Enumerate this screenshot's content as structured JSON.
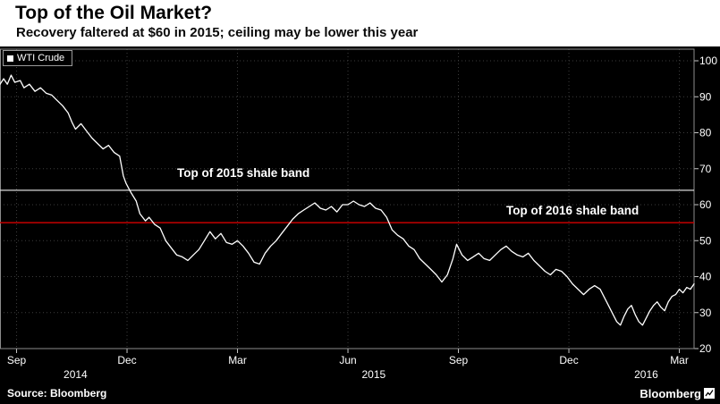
{
  "header": {
    "title": "Top of the Oil Market?",
    "subtitle": "Recovery faltered at $60 in 2015; ceiling may be lower this year"
  },
  "footer": {
    "source": "Source: Bloomberg",
    "brand": "Bloomberg"
  },
  "colors": {
    "background": "#000000",
    "line": "#ffffff",
    "band_2015": "#d9d9d9",
    "band_2016": "#c40000"
  },
  "chart_data": {
    "type": "line",
    "series_name": "WTI Crude",
    "x_unit": "months since Sep 2014",
    "xlim": [
      -0.45,
      18.4
    ],
    "ylim": [
      20,
      100
    ],
    "grid": true,
    "y_ticks": [
      100,
      90,
      80,
      70,
      60,
      50,
      40,
      30,
      20
    ],
    "x_ticks": [
      {
        "m": 0,
        "label": "Sep"
      },
      {
        "m": 3,
        "label": "Dec"
      },
      {
        "m": 6,
        "label": "Mar"
      },
      {
        "m": 9,
        "label": "Jun"
      },
      {
        "m": 12,
        "label": "Sep"
      },
      {
        "m": 15,
        "label": "Dec"
      },
      {
        "m": 18,
        "label": "Mar"
      }
    ],
    "year_labels": [
      {
        "m": 1.6,
        "label": "2014"
      },
      {
        "m": 9.7,
        "label": "2015"
      },
      {
        "m": 17.1,
        "label": "2016"
      }
    ],
    "ref_lines": [
      {
        "name": "top-2015-shale-band",
        "label": "Top of 2015 shale band",
        "value": 64,
        "color": "#d9d9d9",
        "width": 1.2
      },
      {
        "name": "top-2016-shale-band",
        "label": "Top of 2016 shale band",
        "value": 55,
        "color": "#c40000",
        "width": 1.6
      }
    ],
    "x": [
      -0.45,
      -0.35,
      -0.25,
      -0.15,
      -0.05,
      0.1,
      0.2,
      0.35,
      0.5,
      0.65,
      0.8,
      0.95,
      1.1,
      1.25,
      1.4,
      1.5,
      1.6,
      1.75,
      1.9,
      2.05,
      2.2,
      2.35,
      2.5,
      2.65,
      2.8,
      2.9,
      2.97,
      3.1,
      3.25,
      3.35,
      3.5,
      3.6,
      3.75,
      3.9,
      4.05,
      4.2,
      4.35,
      4.5,
      4.65,
      4.8,
      4.95,
      5.1,
      5.25,
      5.4,
      5.55,
      5.7,
      5.85,
      6.0,
      6.15,
      6.3,
      6.45,
      6.6,
      6.75,
      6.9,
      7.05,
      7.2,
      7.35,
      7.5,
      7.65,
      7.8,
      7.95,
      8.1,
      8.25,
      8.4,
      8.55,
      8.7,
      8.85,
      9.0,
      9.15,
      9.3,
      9.45,
      9.6,
      9.75,
      9.9,
      10.05,
      10.2,
      10.35,
      10.5,
      10.65,
      10.8,
      10.95,
      11.1,
      11.25,
      11.4,
      11.55,
      11.7,
      11.85,
      11.95,
      12.1,
      12.25,
      12.4,
      12.55,
      12.7,
      12.85,
      13.0,
      13.15,
      13.3,
      13.45,
      13.6,
      13.75,
      13.9,
      14.05,
      14.2,
      14.35,
      14.5,
      14.65,
      14.8,
      14.95,
      15.1,
      15.25,
      15.4,
      15.55,
      15.7,
      15.85,
      16.0,
      16.1,
      16.2,
      16.3,
      16.4,
      16.5,
      16.6,
      16.7,
      16.8,
      16.9,
      17.0,
      17.1,
      17.2,
      17.3,
      17.4,
      17.5,
      17.6,
      17.7,
      17.8,
      17.9,
      18.0,
      18.1,
      18.2,
      18.3,
      18.4
    ],
    "values": [
      93.5,
      95,
      93.5,
      96,
      94,
      94.5,
      92.5,
      93.5,
      91.5,
      92.5,
      91,
      90.5,
      89,
      87.5,
      85.5,
      83,
      81,
      82.5,
      80.5,
      78.5,
      77,
      75.5,
      76.5,
      74.5,
      73.5,
      68,
      66,
      63.5,
      61,
      57.5,
      55.5,
      56.5,
      54.5,
      53.5,
      50,
      48,
      46,
      45.5,
      44.5,
      46,
      47.5,
      50,
      52.5,
      50.5,
      52,
      49.5,
      49,
      50,
      48.5,
      46.5,
      44,
      43.5,
      46.5,
      48.5,
      50,
      52,
      54,
      56,
      57.5,
      58.5,
      59.5,
      60.5,
      59,
      58.5,
      59.5,
      58,
      60,
      60,
      61,
      60,
      59.5,
      60.5,
      59,
      58.5,
      56.5,
      53,
      51.5,
      50.5,
      48.5,
      47.5,
      45,
      43.5,
      42,
      40.5,
      38.5,
      40.5,
      45,
      49,
      46,
      44.5,
      45.5,
      46.5,
      45,
      44.5,
      46,
      47.5,
      48.5,
      47,
      46,
      45.5,
      46.5,
      44.5,
      43,
      41.5,
      40.5,
      42,
      41.5,
      40,
      38,
      36.5,
      35,
      36.5,
      37.5,
      36.5,
      33.5,
      31.5,
      29.5,
      27.5,
      26.5,
      29,
      31,
      32,
      29.5,
      27.5,
      26.5,
      28.5,
      30.5,
      32,
      33,
      31.5,
      30.5,
      33,
      34.5,
      35,
      36.5,
      35.5,
      37,
      36.5,
      38
    ]
  }
}
